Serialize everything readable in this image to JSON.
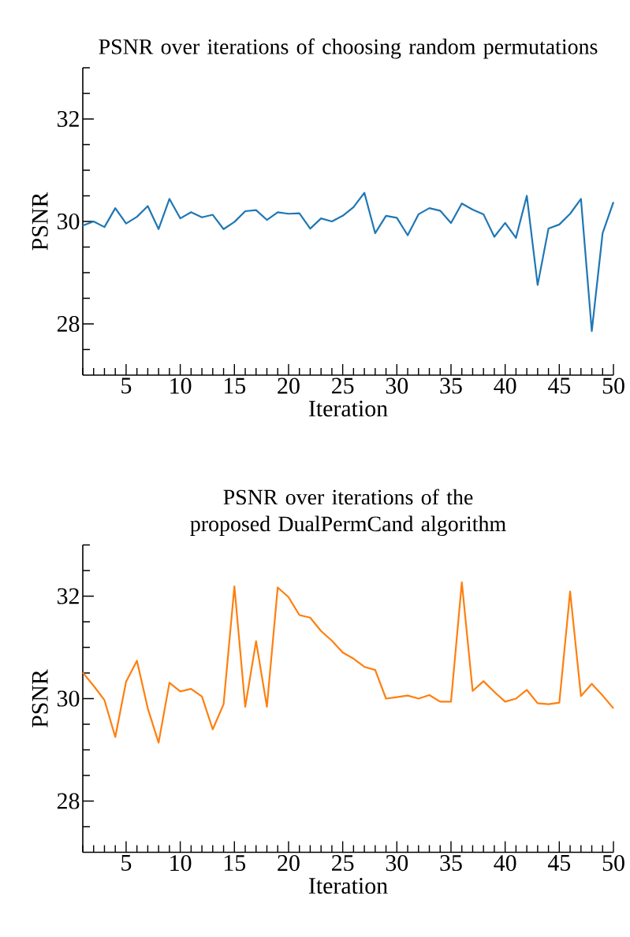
{
  "chart_data": [
    {
      "type": "line",
      "title": "PSNR over iterations of choosing random permutations",
      "xlabel": "Iteration",
      "ylabel": "PSNR",
      "x": [
        1,
        2,
        3,
        4,
        5,
        6,
        7,
        8,
        9,
        10,
        11,
        12,
        13,
        14,
        15,
        16,
        17,
        18,
        19,
        20,
        21,
        22,
        23,
        24,
        25,
        26,
        27,
        28,
        29,
        30,
        31,
        32,
        33,
        34,
        35,
        36,
        37,
        38,
        39,
        40,
        41,
        42,
        43,
        44,
        45,
        46,
        47,
        48,
        49,
        50
      ],
      "series": [
        {
          "color": "#1f77b4",
          "values": [
            29.92,
            30.0,
            29.89,
            30.26,
            29.96,
            30.09,
            30.3,
            29.85,
            30.44,
            30.06,
            30.18,
            30.08,
            30.13,
            29.85,
            29.99,
            30.2,
            30.22,
            30.03,
            30.18,
            30.15,
            30.16,
            29.86,
            30.06,
            30.0,
            30.11,
            30.28,
            30.56,
            29.77,
            30.11,
            30.07,
            29.73,
            30.14,
            30.26,
            30.21,
            29.97,
            30.35,
            30.23,
            30.14,
            29.7,
            29.97,
            29.68,
            30.5,
            28.76,
            29.86,
            29.94,
            30.15,
            30.44,
            27.86,
            29.77,
            30.38
          ]
        }
      ],
      "xlim": [
        1,
        50
      ],
      "ylim": [
        27,
        33
      ],
      "xticks": [
        {
          "value": 1,
          "label": null
        },
        {
          "value": 2,
          "label": null
        },
        {
          "value": 3,
          "label": null
        },
        {
          "value": 4,
          "label": null
        },
        5,
        {
          "value": 6,
          "label": null
        },
        {
          "value": 7,
          "label": null
        },
        {
          "value": 8,
          "label": null
        },
        {
          "value": 9,
          "label": null
        },
        10,
        {
          "value": 11,
          "label": null
        },
        {
          "value": 12,
          "label": null
        },
        {
          "value": 13,
          "label": null
        },
        {
          "value": 14,
          "label": null
        },
        15,
        {
          "value": 16,
          "label": null
        },
        {
          "value": 17,
          "label": null
        },
        {
          "value": 18,
          "label": null
        },
        {
          "value": 19,
          "label": null
        },
        20,
        {
          "value": 21,
          "label": null
        },
        {
          "value": 22,
          "label": null
        },
        {
          "value": 23,
          "label": null
        },
        {
          "value": 24,
          "label": null
        },
        25,
        {
          "value": 26,
          "label": null
        },
        {
          "value": 27,
          "label": null
        },
        {
          "value": 28,
          "label": null
        },
        {
          "value": 29,
          "label": null
        },
        30,
        {
          "value": 31,
          "label": null
        },
        {
          "value": 32,
          "label": null
        },
        {
          "value": 33,
          "label": null
        },
        {
          "value": 34,
          "label": null
        },
        35,
        {
          "value": 36,
          "label": null
        },
        {
          "value": 37,
          "label": null
        },
        {
          "value": 38,
          "label": null
        },
        {
          "value": 39,
          "label": null
        },
        40,
        {
          "value": 41,
          "label": null
        },
        {
          "value": 42,
          "label": null
        },
        {
          "value": 43,
          "label": null
        },
        {
          "value": 44,
          "label": null
        },
        45,
        {
          "value": 46,
          "label": null
        },
        {
          "value": 47,
          "label": null
        },
        {
          "value": 48,
          "label": null
        },
        {
          "value": 49,
          "label": null
        },
        50
      ],
      "yticks": [
        {
          "value": 27.5,
          "label": null
        },
        28,
        {
          "value": 28.5,
          "label": null
        },
        {
          "value": 29,
          "label": null
        },
        {
          "value": 29.5,
          "label": null
        },
        30,
        {
          "value": 30.5,
          "label": null
        },
        {
          "value": 31,
          "label": null
        },
        {
          "value": 31.5,
          "label": null
        },
        32,
        {
          "value": 32.5,
          "label": null
        },
        {
          "value": 33,
          "label": null
        }
      ]
    },
    {
      "type": "line",
      "title": "PSNR over iterations of the proposed DualPermCand algorithm",
      "xlabel": "Iteration",
      "ylabel": "PSNR",
      "x": [
        1,
        2,
        3,
        4,
        5,
        6,
        7,
        8,
        9,
        10,
        11,
        12,
        13,
        14,
        15,
        16,
        17,
        18,
        19,
        20,
        21,
        22,
        23,
        24,
        25,
        26,
        27,
        28,
        29,
        30,
        31,
        32,
        33,
        34,
        35,
        36,
        37,
        38,
        39,
        40,
        41,
        42,
        43,
        44,
        45,
        46,
        47,
        48,
        49,
        50
      ],
      "series": [
        {
          "color": "#ff7f0e",
          "values": [
            30.51,
            30.25,
            29.97,
            29.25,
            30.33,
            30.74,
            29.81,
            29.14,
            30.31,
            30.14,
            30.19,
            30.04,
            29.4,
            29.89,
            32.19,
            29.84,
            31.12,
            29.84,
            32.17,
            31.98,
            31.63,
            31.58,
            31.32,
            31.13,
            30.9,
            30.78,
            30.62,
            30.56,
            30.0,
            30.03,
            30.06,
            30.0,
            30.07,
            29.94,
            29.94,
            32.27,
            30.15,
            30.34,
            30.13,
            29.94,
            30.0,
            30.17,
            29.91,
            29.89,
            29.92,
            32.09,
            30.05,
            30.29,
            30.06,
            29.81
          ]
        }
      ],
      "xlim": [
        1,
        50
      ],
      "ylim": [
        27,
        33
      ],
      "xticks": [
        {
          "value": 1,
          "label": null
        },
        {
          "value": 2,
          "label": null
        },
        {
          "value": 3,
          "label": null
        },
        {
          "value": 4,
          "label": null
        },
        5,
        {
          "value": 6,
          "label": null
        },
        {
          "value": 7,
          "label": null
        },
        {
          "value": 8,
          "label": null
        },
        {
          "value": 9,
          "label": null
        },
        10,
        {
          "value": 11,
          "label": null
        },
        {
          "value": 12,
          "label": null
        },
        {
          "value": 13,
          "label": null
        },
        {
          "value": 14,
          "label": null
        },
        15,
        {
          "value": 16,
          "label": null
        },
        {
          "value": 17,
          "label": null
        },
        {
          "value": 18,
          "label": null
        },
        {
          "value": 19,
          "label": null
        },
        20,
        {
          "value": 21,
          "label": null
        },
        {
          "value": 22,
          "label": null
        },
        {
          "value": 23,
          "label": null
        },
        {
          "value": 24,
          "label": null
        },
        25,
        {
          "value": 26,
          "label": null
        },
        {
          "value": 27,
          "label": null
        },
        {
          "value": 28,
          "label": null
        },
        {
          "value": 29,
          "label": null
        },
        30,
        {
          "value": 31,
          "label": null
        },
        {
          "value": 32,
          "label": null
        },
        {
          "value": 33,
          "label": null
        },
        {
          "value": 34,
          "label": null
        },
        35,
        {
          "value": 36,
          "label": null
        },
        {
          "value": 37,
          "label": null
        },
        {
          "value": 38,
          "label": null
        },
        {
          "value": 39,
          "label": null
        },
        40,
        {
          "value": 41,
          "label": null
        },
        {
          "value": 42,
          "label": null
        },
        {
          "value": 43,
          "label": null
        },
        {
          "value": 44,
          "label": null
        },
        45,
        {
          "value": 46,
          "label": null
        },
        {
          "value": 47,
          "label": null
        },
        {
          "value": 48,
          "label": null
        },
        {
          "value": 49,
          "label": null
        },
        50
      ],
      "yticks": [
        {
          "value": 27.5,
          "label": null
        },
        28,
        {
          "value": 28.5,
          "label": null
        },
        {
          "value": 29,
          "label": null
        },
        {
          "value": 29.5,
          "label": null
        },
        30,
        {
          "value": 30.5,
          "label": null
        },
        {
          "value": 31,
          "label": null
        },
        {
          "value": 31.5,
          "label": null
        },
        32,
        {
          "value": 32.5,
          "label": null
        },
        {
          "value": 33,
          "label": null
        }
      ]
    }
  ]
}
